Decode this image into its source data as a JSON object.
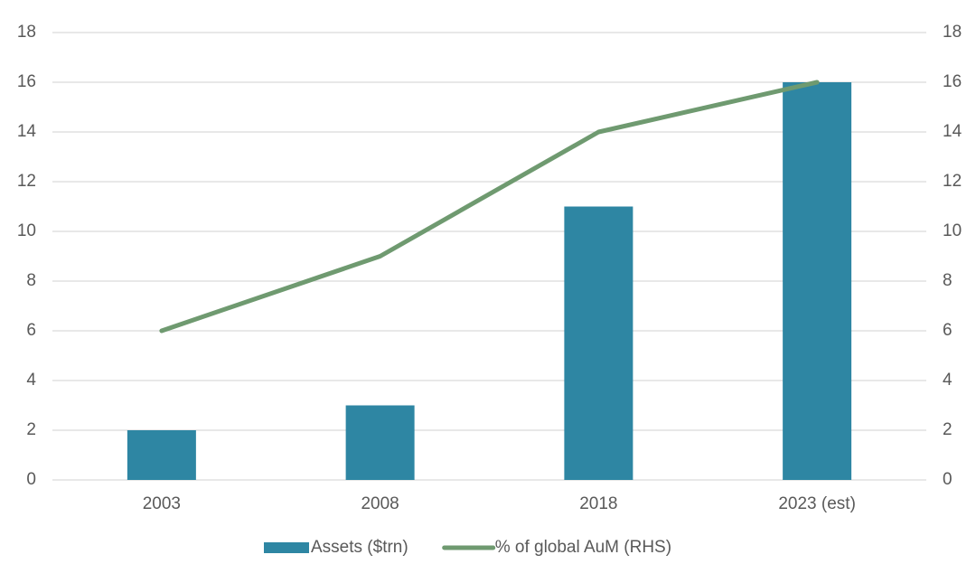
{
  "chart_data": {
    "type": "bar",
    "categories": [
      "2003",
      "2008",
      "2018",
      "2023 (est)"
    ],
    "series": [
      {
        "name": "Assets ($trn)",
        "type": "bar",
        "color": "#2e86a3",
        "values": [
          2,
          3,
          11,
          16
        ]
      },
      {
        "name": "% of global AuM (RHS)",
        "type": "line",
        "axis": "y2",
        "color": "#6f9a70",
        "values": [
          6,
          9,
          14,
          16
        ]
      }
    ],
    "ylim": [
      0,
      18
    ],
    "yticks": [
      0,
      2,
      4,
      6,
      8,
      10,
      12,
      14,
      16,
      18
    ],
    "y2lim": [
      0,
      18
    ],
    "y2ticks": [
      0,
      2,
      4,
      6,
      8,
      10,
      12,
      14,
      16,
      18
    ],
    "grid": true,
    "legend": "bottom"
  }
}
